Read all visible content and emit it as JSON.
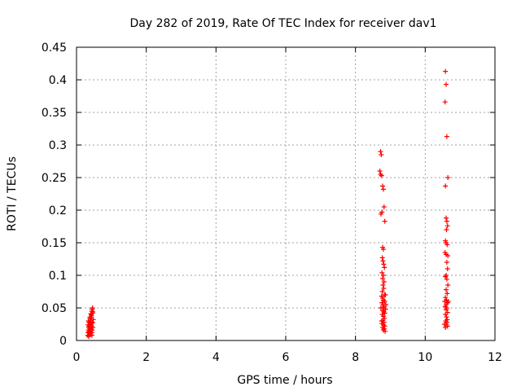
{
  "chart_data": {
    "type": "scatter",
    "title": "Day 282 of 2019, Rate Of TEC Index for receiver dav1",
    "xlabel": "GPS time / hours",
    "ylabel": "ROTI / TECUs",
    "xlim": [
      0,
      12
    ],
    "ylim": [
      0,
      0.45
    ],
    "x_ticks": [
      0,
      2,
      4,
      6,
      8,
      10,
      12
    ],
    "x_tick_labels": [
      "0",
      "2",
      "4",
      "6",
      "8",
      "10",
      "12"
    ],
    "y_ticks": [
      0,
      0.05,
      0.1,
      0.15,
      0.2,
      0.25,
      0.3,
      0.35,
      0.4,
      0.45
    ],
    "y_tick_labels": [
      "0",
      "0.05",
      "0.1",
      "0.15",
      "0.2",
      "0.25",
      "0.3",
      "0.35",
      "0.4",
      "0.45"
    ],
    "grid": true,
    "marker": "plus",
    "marker_color": "#ff0000",
    "series": [
      {
        "points": [
          [
            0.32,
            0.008
          ],
          [
            0.33,
            0.012
          ],
          [
            0.34,
            0.016
          ],
          [
            0.35,
            0.02
          ],
          [
            0.33,
            0.024
          ],
          [
            0.36,
            0.028
          ],
          [
            0.34,
            0.03
          ],
          [
            0.35,
            0.006
          ],
          [
            0.37,
            0.014
          ],
          [
            0.38,
            0.018
          ],
          [
            0.36,
            0.022
          ],
          [
            0.39,
            0.026
          ],
          [
            0.38,
            0.034
          ],
          [
            0.4,
            0.01
          ],
          [
            0.41,
            0.015
          ],
          [
            0.4,
            0.02
          ],
          [
            0.42,
            0.025
          ],
          [
            0.41,
            0.03
          ],
          [
            0.43,
            0.035
          ],
          [
            0.42,
            0.04
          ],
          [
            0.44,
            0.045
          ],
          [
            0.45,
            0.048
          ],
          [
            0.43,
            0.038
          ],
          [
            0.46,
            0.042
          ],
          [
            0.44,
            0.012
          ],
          [
            0.45,
            0.016
          ],
          [
            0.47,
            0.02
          ],
          [
            0.46,
            0.028
          ],
          [
            0.48,
            0.032
          ],
          [
            0.47,
            0.044
          ],
          [
            0.39,
            0.036
          ],
          [
            0.37,
            0.009
          ],
          [
            0.35,
            0.013
          ],
          [
            0.43,
            0.022
          ],
          [
            0.45,
            0.027
          ],
          [
            0.41,
            0.041
          ],
          [
            0.46,
            0.05
          ],
          [
            0.44,
            0.008
          ],
          [
            8.72,
            0.29
          ],
          [
            8.74,
            0.285
          ],
          [
            8.7,
            0.26
          ],
          [
            8.72,
            0.255
          ],
          [
            8.75,
            0.253
          ],
          [
            8.78,
            0.237
          ],
          [
            8.8,
            0.232
          ],
          [
            8.76,
            0.197
          ],
          [
            8.73,
            0.194
          ],
          [
            8.82,
            0.205
          ],
          [
            8.84,
            0.183
          ],
          [
            8.78,
            0.143
          ],
          [
            8.8,
            0.14
          ],
          [
            8.77,
            0.127
          ],
          [
            8.79,
            0.122
          ],
          [
            8.81,
            0.117
          ],
          [
            8.83,
            0.112
          ],
          [
            8.76,
            0.104
          ],
          [
            8.8,
            0.1
          ],
          [
            8.78,
            0.095
          ],
          [
            8.82,
            0.09
          ],
          [
            8.79,
            0.085
          ],
          [
            8.81,
            0.08
          ],
          [
            8.77,
            0.075
          ],
          [
            8.83,
            0.07
          ],
          [
            8.75,
            0.068
          ],
          [
            8.78,
            0.065
          ],
          [
            8.8,
            0.062
          ],
          [
            8.84,
            0.06
          ],
          [
            8.76,
            0.058
          ],
          [
            8.79,
            0.055
          ],
          [
            8.82,
            0.052
          ],
          [
            8.8,
            0.05
          ],
          [
            8.86,
            0.048
          ],
          [
            8.78,
            0.046
          ],
          [
            8.81,
            0.044
          ],
          [
            8.84,
            0.042
          ],
          [
            8.77,
            0.04
          ],
          [
            8.8,
            0.037
          ],
          [
            8.83,
            0.034
          ],
          [
            8.79,
            0.031
          ],
          [
            8.82,
            0.028
          ],
          [
            8.76,
            0.026
          ],
          [
            8.8,
            0.024
          ],
          [
            8.84,
            0.022
          ],
          [
            8.78,
            0.02
          ],
          [
            8.82,
            0.018
          ],
          [
            8.8,
            0.016
          ],
          [
            8.85,
            0.014
          ],
          [
            8.75,
            0.03
          ],
          [
            8.87,
            0.055
          ],
          [
            8.73,
            0.05
          ],
          [
            8.86,
            0.07
          ],
          [
            10.58,
            0.413
          ],
          [
            10.6,
            0.393
          ],
          [
            10.57,
            0.366
          ],
          [
            10.62,
            0.313
          ],
          [
            10.65,
            0.25
          ],
          [
            10.58,
            0.237
          ],
          [
            10.6,
            0.188
          ],
          [
            10.62,
            0.183
          ],
          [
            10.64,
            0.176
          ],
          [
            10.61,
            0.17
          ],
          [
            10.58,
            0.153
          ],
          [
            10.6,
            0.15
          ],
          [
            10.63,
            0.147
          ],
          [
            10.57,
            0.135
          ],
          [
            10.6,
            0.132
          ],
          [
            10.65,
            0.13
          ],
          [
            10.62,
            0.12
          ],
          [
            10.64,
            0.11
          ],
          [
            10.6,
            0.1
          ],
          [
            10.58,
            0.098
          ],
          [
            10.62,
            0.094
          ],
          [
            10.65,
            0.085
          ],
          [
            10.6,
            0.078
          ],
          [
            10.63,
            0.072
          ],
          [
            10.58,
            0.066
          ],
          [
            10.61,
            0.062
          ],
          [
            10.64,
            0.058
          ],
          [
            10.6,
            0.055
          ],
          [
            10.57,
            0.052
          ],
          [
            10.62,
            0.05
          ],
          [
            10.6,
            0.047
          ],
          [
            10.64,
            0.043
          ],
          [
            10.58,
            0.04
          ],
          [
            10.61,
            0.036
          ],
          [
            10.63,
            0.032
          ],
          [
            10.59,
            0.03
          ],
          [
            10.62,
            0.028
          ],
          [
            10.6,
            0.025
          ],
          [
            10.64,
            0.022
          ],
          [
            10.58,
            0.02
          ],
          [
            10.56,
            0.06
          ],
          [
            10.66,
            0.06
          ],
          [
            10.55,
            0.025
          ]
        ]
      }
    ]
  }
}
